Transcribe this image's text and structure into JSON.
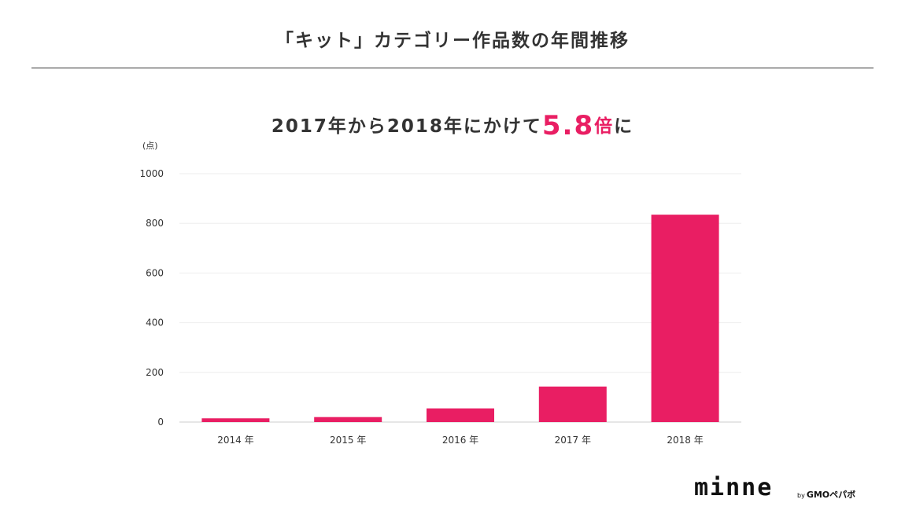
{
  "header": {
    "title": "「キット」カテゴリー作品数の年間推移",
    "subtitle_pre": "2017年から2018年にかけて",
    "subtitle_value": "5.8",
    "subtitle_suffix_accent": "倍",
    "subtitle_post": "に"
  },
  "footer": {
    "logo": "minne",
    "brand_by": "by",
    "brand_name": "GMOペパボ"
  },
  "colors": {
    "bar": "#e91e63",
    "accent": "#e91e63",
    "text": "#333333"
  },
  "chart_data": {
    "type": "bar",
    "ylabel": "(点)",
    "ylim": [
      0,
      1000
    ],
    "yticks": [
      0,
      200,
      400,
      600,
      800,
      1000
    ],
    "categories": [
      "2014 年",
      "2015 年",
      "2016 年",
      "2017 年",
      "2018 年"
    ],
    "values": [
      15,
      20,
      55,
      143,
      835
    ],
    "grid": true
  }
}
